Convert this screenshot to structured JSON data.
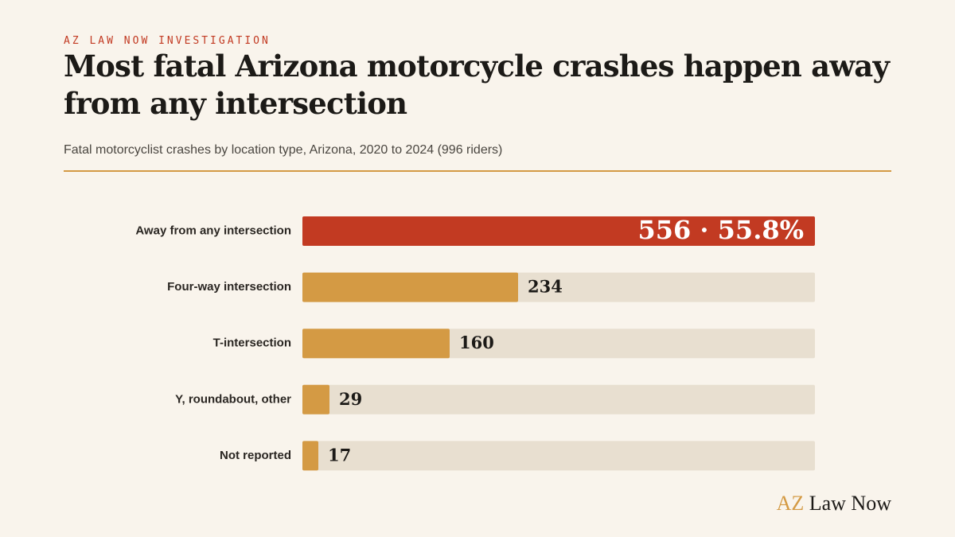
{
  "header": {
    "kicker": "AZ LAW NOW INVESTIGATION",
    "title": "Most fatal Arizona motorcycle crashes happen away from any intersection",
    "subtitle": "Fatal motorcyclist crashes by location type, Arizona, 2020 to 2024 (996 riders)"
  },
  "brand": {
    "part1": "AZ",
    "part2": " Law Now"
  },
  "colors": {
    "highlight": "#c23a22",
    "bar": "#d49a44",
    "track": "#e8dfd0",
    "background": "#f9f4ec"
  },
  "chart_data": {
    "type": "bar",
    "orientation": "horizontal",
    "title": "Most fatal Arizona motorcycle crashes happen away from any intersection",
    "categories": [
      "Away from any intersection",
      "Four-way intersection",
      "T-intersection",
      "Y, roundabout, other",
      "Not reported"
    ],
    "values": [
      556,
      234,
      160,
      29,
      17
    ],
    "value_labels": [
      "556 · 55.8%",
      "234",
      "160",
      "29",
      "17"
    ],
    "highlight_index": 0,
    "xlim": [
      0,
      556
    ],
    "total": 996,
    "grid": false
  }
}
